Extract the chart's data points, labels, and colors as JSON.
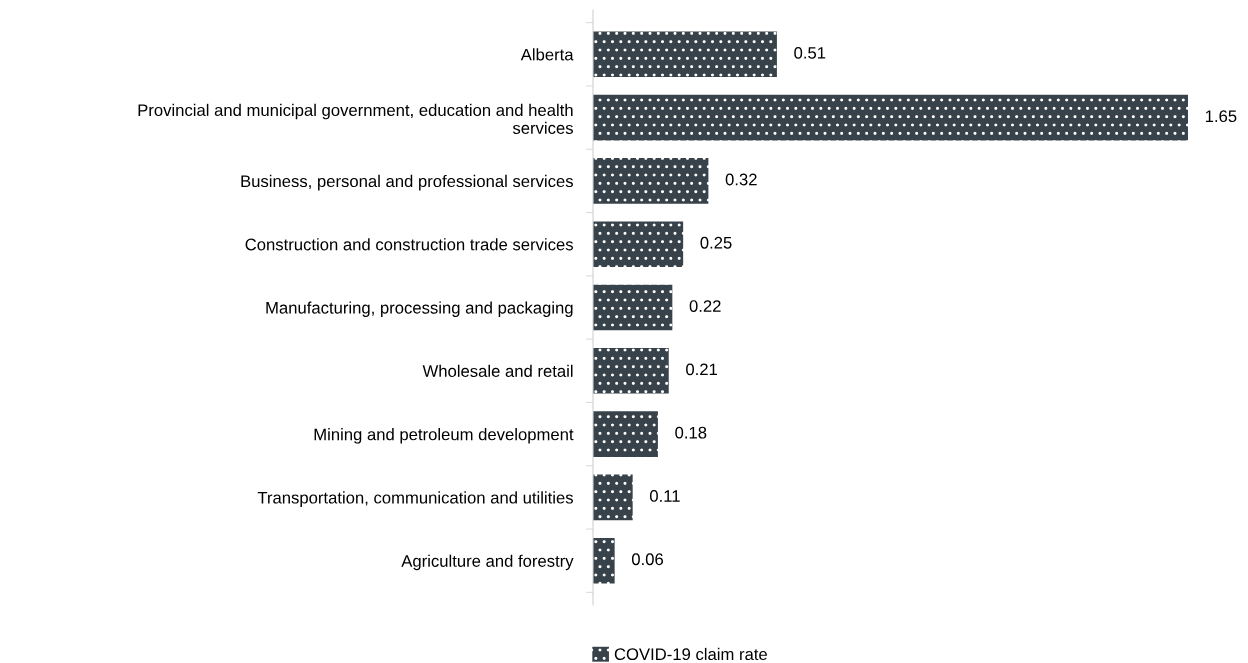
{
  "chart_data": {
    "type": "bar",
    "orientation": "horizontal",
    "categories": [
      "Alberta",
      "Provincial and municipal government, education and health\nservices",
      "Business, personal and professional services",
      "Construction and construction trade services",
      "Manufacturing, processing and packaging",
      "Wholesale and retail",
      "Mining and petroleum development",
      "Transportation, communication and utilities",
      "Agriculture and forestry"
    ],
    "series": [
      {
        "name": "COVID-19 claim rate",
        "color": "#37424a",
        "values": [
          0.51,
          1.65,
          0.32,
          0.25,
          0.22,
          0.21,
          0.18,
          0.11,
          0.06
        ]
      }
    ],
    "data_labels": true,
    "legend": "bottom",
    "grid": false
  }
}
